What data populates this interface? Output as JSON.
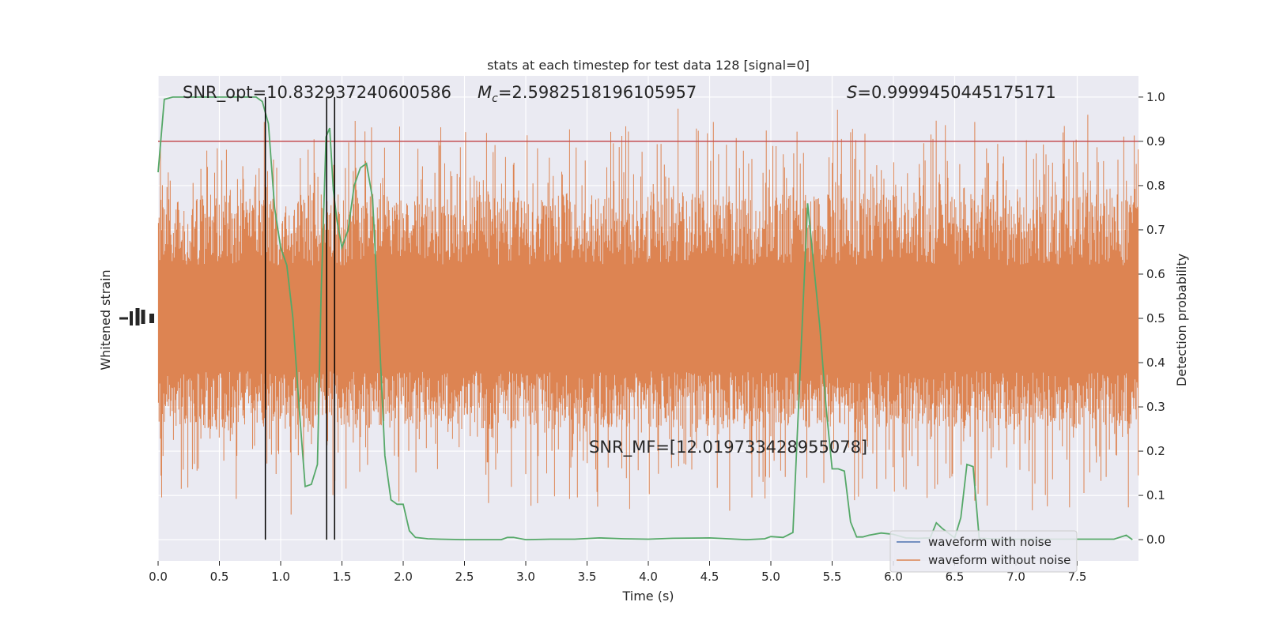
{
  "chart_data": {
    "type": "line",
    "title": "stats at each timestep for test data 128 [signal=0]",
    "xlabel": "Time (s)",
    "ylabel_left": "Whitened strain",
    "ylabel_right": "Detection probability",
    "xlim": [
      0.0,
      8.0
    ],
    "xticks": [
      0.0,
      0.5,
      1.0,
      1.5,
      2.0,
      2.5,
      3.0,
      3.5,
      4.0,
      4.5,
      5.0,
      5.5,
      6.0,
      6.5,
      7.0,
      7.5
    ],
    "xtick_labels": [
      "0.0",
      "0.5",
      "1.0",
      "1.5",
      "2.0",
      "2.5",
      "3.0",
      "3.5",
      "4.0",
      "4.5",
      "5.0",
      "5.5",
      "6.0",
      "6.5",
      "7.0",
      "7.5"
    ],
    "ylim_right": [
      -0.048,
      1.048
    ],
    "yticks_right": [
      0.0,
      0.1,
      0.2,
      0.3,
      0.4,
      0.5,
      0.6,
      0.7,
      0.8,
      0.9,
      1.0
    ],
    "ytick_labels_right": [
      "0.0",
      "0.1",
      "0.2",
      "0.3",
      "0.4",
      "0.5",
      "0.6",
      "0.7",
      "0.8",
      "0.9",
      "1.0"
    ],
    "threshold": 0.9,
    "vlines_x": [
      0.875,
      1.375,
      1.44
    ],
    "grid": true,
    "legend_position": "lower-right",
    "annotations": {
      "snr_opt": "SNR_opt=10.832937240600586",
      "mc_symbol": "M",
      "mc_subscript": "c",
      "mc_value": "=2.5982518196105957",
      "s_symbol": "S",
      "s_value": "=0.9999450445175171",
      "snr_mf": "SNR_MF=[12.019733428955078]"
    },
    "series": [
      {
        "name": "waveform with noise",
        "color": "#4c72b0"
      },
      {
        "name": "waveform without noise",
        "color": "#dd8452"
      }
    ],
    "detection_probability": {
      "color": "#55a868",
      "x": [
        0.0,
        0.05,
        0.12,
        0.2,
        0.3,
        0.4,
        0.5,
        0.6,
        0.7,
        0.8,
        0.85,
        0.9,
        0.95,
        1.0,
        1.05,
        1.1,
        1.15,
        1.2,
        1.25,
        1.3,
        1.33,
        1.37,
        1.4,
        1.43,
        1.46,
        1.5,
        1.55,
        1.6,
        1.65,
        1.7,
        1.75,
        1.8,
        1.85,
        1.9,
        1.95,
        2.0,
        2.05,
        2.1,
        2.2,
        2.3,
        2.5,
        2.8,
        2.85,
        2.9,
        3.0,
        3.2,
        3.4,
        3.6,
        3.8,
        4.0,
        4.2,
        4.5,
        4.8,
        4.95,
        5.0,
        5.1,
        5.18,
        5.3,
        5.4,
        5.45,
        5.5,
        5.55,
        5.6,
        5.65,
        5.7,
        5.75,
        5.8,
        5.9,
        6.0,
        6.1,
        6.2,
        6.3,
        6.35,
        6.4,
        6.5,
        6.55,
        6.6,
        6.65,
        6.7,
        6.8,
        7.0,
        7.2,
        7.5,
        7.7,
        7.8,
        7.9,
        7.95
      ],
      "y": [
        0.83,
        0.995,
        1.0,
        1.0,
        1.0,
        1.0,
        1.0,
        1.0,
        1.0,
        1.0,
        0.99,
        0.94,
        0.75,
        0.66,
        0.62,
        0.5,
        0.3,
        0.12,
        0.125,
        0.17,
        0.55,
        0.91,
        0.93,
        0.79,
        0.72,
        0.66,
        0.7,
        0.8,
        0.84,
        0.85,
        0.77,
        0.49,
        0.19,
        0.09,
        0.08,
        0.08,
        0.02,
        0.005,
        0.002,
        0.001,
        0.0,
        0.0,
        0.005,
        0.005,
        0.0,
        0.001,
        0.001,
        0.004,
        0.002,
        0.001,
        0.003,
        0.004,
        0.0,
        0.002,
        0.007,
        0.005,
        0.016,
        0.76,
        0.48,
        0.3,
        0.16,
        0.16,
        0.155,
        0.04,
        0.006,
        0.006,
        0.01,
        0.015,
        0.012,
        0.004,
        0.003,
        0.004,
        0.038,
        0.025,
        0.004,
        0.05,
        0.17,
        0.165,
        0.003,
        0.002,
        0.001,
        0.001,
        0.001,
        0.001,
        0.001,
        0.01,
        0.0
      ]
    }
  }
}
